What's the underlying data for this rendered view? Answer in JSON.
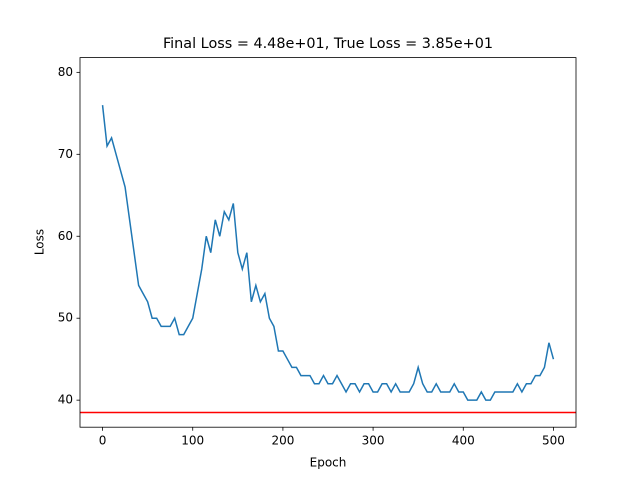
{
  "chart_data": {
    "type": "line",
    "title": "Final Loss = 4.48e+01, True Loss = 3.85e+01",
    "xlabel": "Epoch",
    "ylabel": "Loss",
    "x": [
      0,
      5,
      10,
      15,
      20,
      25,
      30,
      35,
      40,
      45,
      50,
      55,
      60,
      65,
      70,
      75,
      80,
      85,
      90,
      95,
      100,
      105,
      110,
      115,
      120,
      125,
      130,
      135,
      140,
      145,
      150,
      155,
      160,
      165,
      170,
      175,
      180,
      185,
      190,
      195,
      200,
      205,
      210,
      215,
      220,
      225,
      230,
      235,
      240,
      245,
      250,
      255,
      260,
      265,
      270,
      275,
      280,
      285,
      290,
      295,
      300,
      305,
      310,
      315,
      320,
      325,
      330,
      335,
      340,
      345,
      350,
      355,
      360,
      365,
      370,
      375,
      380,
      385,
      390,
      395,
      400,
      405,
      410,
      415,
      420,
      425,
      430,
      435,
      440,
      445,
      450,
      455,
      460,
      465,
      470,
      475,
      480,
      485,
      490,
      495,
      500
    ],
    "series": [
      {
        "name": "Loss",
        "color": "#1f77b4",
        "values": [
          76,
          71,
          72,
          70,
          68,
          66,
          62,
          58,
          54,
          53,
          52,
          50,
          50,
          49,
          49,
          49,
          50,
          48,
          48,
          49,
          50,
          53,
          56,
          60,
          58,
          62,
          60,
          63,
          62,
          64,
          58,
          56,
          58,
          52,
          54,
          52,
          53,
          50,
          49,
          46,
          46,
          45,
          44,
          44,
          43,
          43,
          43,
          42,
          42,
          43,
          42,
          42,
          43,
          42,
          41,
          42,
          42,
          41,
          42,
          42,
          41,
          41,
          42,
          42,
          41,
          42,
          41,
          41,
          41,
          42,
          44,
          42,
          41,
          41,
          42,
          41,
          41,
          41,
          42,
          41,
          41,
          40,
          40,
          40,
          41,
          40,
          40,
          41,
          41,
          41,
          41,
          41,
          42,
          41,
          42,
          42,
          43,
          43,
          44,
          47,
          45
        ]
      }
    ],
    "hline": {
      "value": 38.5,
      "color": "#ff0000"
    },
    "xlim": [
      -25,
      525
    ],
    "ylim": [
      36.7,
      81.8
    ],
    "xticks": [
      0,
      100,
      200,
      300,
      400,
      500
    ],
    "yticks": [
      40,
      50,
      60,
      70,
      80
    ],
    "grid": false
  }
}
